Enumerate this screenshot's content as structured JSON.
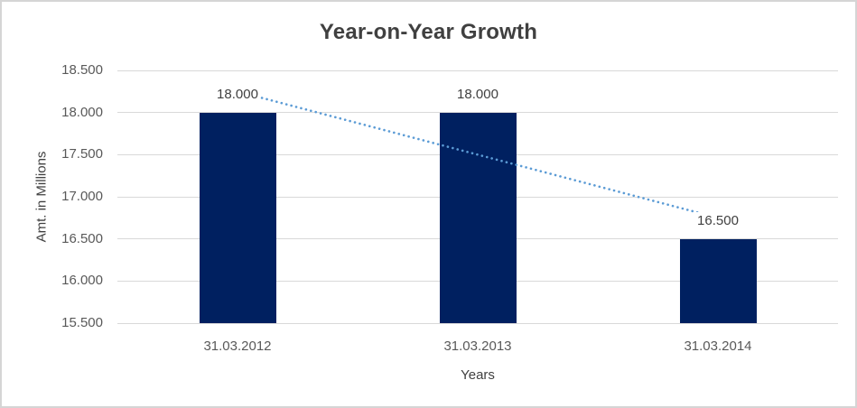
{
  "chart_data": {
    "type": "bar",
    "title": "Year-on-Year Growth",
    "xlabel": "Years",
    "ylabel": "Amt. in Millions",
    "categories": [
      "31.03.2012",
      "31.03.2013",
      "31.03.2014"
    ],
    "values": [
      18000,
      18000,
      16500
    ],
    "value_labels": [
      "18.000",
      "18.000",
      "16.500"
    ],
    "ylim": [
      15500,
      18500
    ],
    "ytick_step": 500,
    "ytick_labels": [
      "15.500",
      "16.000",
      "16.500",
      "17.000",
      "17.500",
      "18.000",
      "18.500"
    ],
    "grid": true,
    "legend": false,
    "colors": {
      "bar": "#002060",
      "trendline": "#5b9bd5",
      "gridline": "#d9d9d9",
      "title_text": "#404040",
      "tick_text": "#595959",
      "frame_border": "#d5d5d5"
    },
    "trendline": {
      "type": "linear",
      "style": "dotted"
    }
  }
}
